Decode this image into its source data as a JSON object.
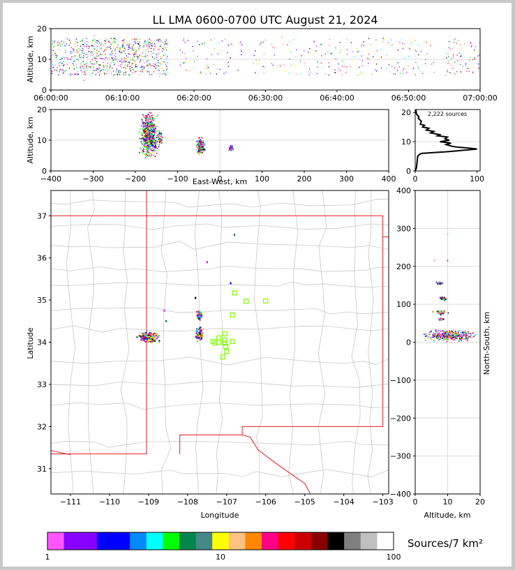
{
  "title": "LL LMA 0600-0700 UTC August 21, 2024",
  "colors": {
    "state_border": "#e31a1c",
    "county_border": "#c8c8c8",
    "grid": "#dcdcdc",
    "stations": "#7cfc00",
    "bar_bg": "#c8c8c8"
  },
  "chart_data": [
    {
      "id": "time_height",
      "type": "scatter",
      "ylabel": "Altitude, km",
      "xlabel": "",
      "x_ticks": [
        "06:00:00",
        "06:10:00",
        "06:20:00",
        "06:30:00",
        "06:40:00",
        "06:50:00",
        "07:00:00"
      ],
      "xlim_minutes": [
        0,
        60
      ],
      "y_ticks": [
        0,
        10,
        20
      ],
      "ylim": [
        0,
        20
      ],
      "activity_windows_minutes": [
        [
          0,
          6.2
        ],
        [
          6.2,
          11.0
        ],
        [
          11.0,
          16.3
        ],
        [
          18.0,
          27.0
        ],
        [
          28.0,
          38.0
        ],
        [
          38.0,
          46.0
        ],
        [
          46.0,
          53.5
        ],
        [
          55.0,
          60.0
        ]
      ],
      "typical_altitude_km": [
        5,
        17
      ]
    },
    {
      "id": "ew_height",
      "type": "scatter",
      "xlabel": "East-West, km",
      "ylabel": "Altitude, km",
      "x_ticks": [
        -400,
        -300,
        -200,
        -100,
        0,
        100,
        200,
        300,
        400
      ],
      "xlim": [
        -400,
        400
      ],
      "y_ticks": [
        0,
        10,
        20
      ],
      "ylim": [
        0,
        20
      ],
      "clusters": [
        {
          "x": -168,
          "x_spread": 12,
          "alt": 12,
          "alt_spread": 4.5
        },
        {
          "x": -142,
          "x_spread": 4,
          "alt": 11,
          "alt_spread": 2
        },
        {
          "x": -45,
          "x_spread": 6,
          "alt": 8,
          "alt_spread": 1.6
        },
        {
          "x": 27,
          "x_spread": 3,
          "alt": 7.5,
          "alt_spread": 0.7
        }
      ]
    },
    {
      "id": "alt_hist",
      "type": "line",
      "annotation": "2,222 sources",
      "x_ticks": [
        0,
        100
      ],
      "xlim": [
        0,
        105
      ],
      "y_ticks": [
        0,
        10,
        20
      ],
      "ylim": [
        0,
        21
      ],
      "profile": [
        [
          0,
          0
        ],
        [
          2,
          1
        ],
        [
          3,
          3
        ],
        [
          4,
          5
        ],
        [
          6,
          5.5
        ],
        [
          10,
          6
        ],
        [
          40,
          6.4
        ],
        [
          60,
          6.7
        ],
        [
          75,
          7.0
        ],
        [
          100,
          7.5
        ],
        [
          88,
          7.8
        ],
        [
          70,
          8.1
        ],
        [
          60,
          8.4
        ],
        [
          50,
          9
        ],
        [
          58,
          9.5
        ],
        [
          40,
          10
        ],
        [
          55,
          10.5
        ],
        [
          48,
          11
        ],
        [
          52,
          11.6
        ],
        [
          36,
          12
        ],
        [
          40,
          12.4
        ],
        [
          25,
          13
        ],
        [
          30,
          13.5
        ],
        [
          18,
          14
        ],
        [
          22,
          14.6
        ],
        [
          12,
          15
        ],
        [
          15,
          15.6
        ],
        [
          8,
          16
        ],
        [
          10,
          17
        ],
        [
          5,
          18
        ],
        [
          6,
          18.5
        ],
        [
          2,
          19.5
        ],
        [
          1,
          21
        ]
      ]
    },
    {
      "id": "plan_view",
      "type": "scatter",
      "xlabel": "Longitude",
      "ylabel": "Latitude",
      "x_ticks": [
        -111,
        -110,
        -109,
        -108,
        -107,
        -106,
        -105,
        -104,
        -103
      ],
      "xlim": [
        -111.5,
        -102.85
      ],
      "y_ticks": [
        31,
        32,
        33,
        34,
        35,
        36,
        37
      ],
      "ylim": [
        30.4,
        37.6
      ],
      "clusters": [
        {
          "lon": -109.0,
          "lat": 34.12,
          "lon_spread": 0.15,
          "lat_spread": 0.07
        },
        {
          "lon": -107.7,
          "lat": 34.2,
          "lon_spread": 0.06,
          "lat_spread": 0.1
        },
        {
          "lon": -107.7,
          "lat": 34.65,
          "lon_spread": 0.04,
          "lat_spread": 0.08
        }
      ],
      "isolated": [
        {
          "lon": -107.8,
          "lat": 35.05
        },
        {
          "lon": -108.55,
          "lat": 34.5
        },
        {
          "lon": -106.9,
          "lat": 35.4
        },
        {
          "lon": -107.5,
          "lat": 35.9
        },
        {
          "lon": -106.8,
          "lat": 36.55
        },
        {
          "lon": -108.6,
          "lat": 34.75
        }
      ],
      "stations": [
        {
          "lon": -106.8,
          "lat": 35.17
        },
        {
          "lon": -106.5,
          "lat": 34.97
        },
        {
          "lon": -106.0,
          "lat": 34.98
        },
        {
          "lon": -106.85,
          "lat": 34.65
        },
        {
          "lon": -107.05,
          "lat": 34.2
        },
        {
          "lon": -107.2,
          "lat": 34.1
        },
        {
          "lon": -107.05,
          "lat": 34.05
        },
        {
          "lon": -107.35,
          "lat": 34.02
        },
        {
          "lon": -107.2,
          "lat": 34.0
        },
        {
          "lon": -107.05,
          "lat": 33.98
        },
        {
          "lon": -106.85,
          "lat": 34.02
        },
        {
          "lon": -107.3,
          "lat": 33.98
        },
        {
          "lon": -107.02,
          "lat": 33.9
        },
        {
          "lon": -107.0,
          "lat": 33.78
        },
        {
          "lon": -107.1,
          "lat": 33.65
        }
      ]
    },
    {
      "id": "ns_height",
      "type": "scatter",
      "xlabel": "Altitude, km",
      "ylabel": "North-South, km",
      "x_ticks": [
        0,
        10,
        20
      ],
      "xlim": [
        0,
        20
      ],
      "y_ticks": [
        -400,
        -300,
        -200,
        -100,
        0,
        100,
        200,
        300,
        400
      ],
      "ylim": [
        -400,
        400
      ],
      "clusters": [
        {
          "alt": 11,
          "alt_spread": 5,
          "ns": 18,
          "ns_spread": 9
        },
        {
          "alt": 8,
          "alt_spread": 1.3,
          "ns": 78,
          "ns_spread": 4
        },
        {
          "alt": 8.5,
          "alt_spread": 0.8,
          "ns": 115,
          "ns_spread": 3
        },
        {
          "alt": 7.5,
          "alt_spread": 0.6,
          "ns": 155,
          "ns_spread": 2
        },
        {
          "alt": 8,
          "alt_spread": 0.6,
          "ns": 60,
          "ns_spread": 2
        }
      ],
      "isolated": [
        {
          "alt": 10,
          "ns": 285
        },
        {
          "alt": 6,
          "ns": 215
        },
        {
          "alt": 10,
          "ns": 215
        }
      ]
    },
    {
      "id": "colorbar",
      "type": "heatmap",
      "label": "Sources/7 km²",
      "ticks": [
        "1",
        "10",
        "100"
      ],
      "range": [
        1,
        100
      ],
      "scale": "log",
      "colors": [
        "#ff55ff",
        "#8800ff",
        "#8800ff",
        "#0000ff",
        "#0000ff",
        "#0088ff",
        "#00ffff",
        "#00ff00",
        "#00854a",
        "#448888",
        "#ffff00",
        "#ffc080",
        "#ff8800",
        "#ff0088",
        "#ff0000",
        "#cc0000",
        "#880000",
        "#000000",
        "#808080",
        "#c0c0c0",
        "#ffffff"
      ]
    }
  ]
}
